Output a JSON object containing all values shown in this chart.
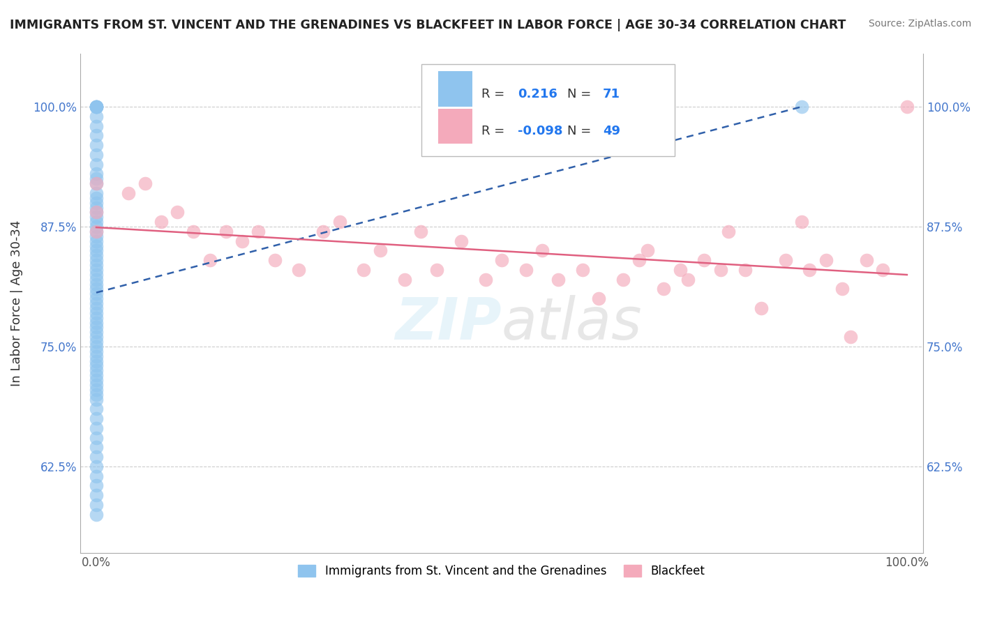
{
  "title": "IMMIGRANTS FROM ST. VINCENT AND THE GRENADINES VS BLACKFEET IN LABOR FORCE | AGE 30-34 CORRELATION CHART",
  "source": "Source: ZipAtlas.com",
  "ylabel": "In Labor Force | Age 30-34",
  "xlim": [
    -0.02,
    1.02
  ],
  "ylim": [
    0.535,
    1.055
  ],
  "yticks": [
    0.625,
    0.75,
    0.875,
    1.0
  ],
  "ytick_labels": [
    "62.5%",
    "75.0%",
    "87.5%",
    "100.0%"
  ],
  "xticks": [
    0.0,
    1.0
  ],
  "xtick_labels": [
    "0.0%",
    "100.0%"
  ],
  "legend_R1": "0.216",
  "legend_N1": "71",
  "legend_R2": "-0.098",
  "legend_N2": "49",
  "label1": "Immigrants from St. Vincent and the Grenadines",
  "label2": "Blackfeet",
  "color1": "#8FC4EE",
  "color2": "#F4AABB",
  "trendline_color1": "#3060AA",
  "trendline_color2": "#E06080",
  "gridline_color": "#CCCCCC",
  "background_color": "#FFFFFF",
  "blue_x": [
    0.0,
    0.0,
    0.0,
    0.0,
    0.0,
    0.0,
    0.0,
    0.0,
    0.0,
    0.0,
    0.0,
    0.0,
    0.0,
    0.0,
    0.0,
    0.0,
    0.0,
    0.0,
    0.0,
    0.0,
    0.0,
    0.0,
    0.0,
    0.0,
    0.0,
    0.0,
    0.0,
    0.0,
    0.0,
    0.0,
    0.0,
    0.0,
    0.0,
    0.0,
    0.0,
    0.0,
    0.0,
    0.0,
    0.0,
    0.0,
    0.0,
    0.0,
    0.0,
    0.0,
    0.0,
    0.0,
    0.0,
    0.0,
    0.0,
    0.0,
    0.0,
    0.0,
    0.0,
    0.0,
    0.0,
    0.0,
    0.0,
    0.0,
    0.0,
    0.0,
    0.0,
    0.0,
    0.0,
    0.0,
    0.0,
    0.0,
    0.0,
    0.0,
    0.0,
    0.0,
    0.87
  ],
  "blue_y": [
    1.0,
    1.0,
    1.0,
    1.0,
    1.0,
    0.99,
    0.98,
    0.97,
    0.96,
    0.95,
    0.94,
    0.93,
    0.925,
    0.92,
    0.91,
    0.905,
    0.9,
    0.895,
    0.89,
    0.885,
    0.88,
    0.875,
    0.87,
    0.865,
    0.86,
    0.855,
    0.85,
    0.845,
    0.84,
    0.835,
    0.83,
    0.825,
    0.82,
    0.815,
    0.81,
    0.805,
    0.8,
    0.795,
    0.79,
    0.785,
    0.78,
    0.775,
    0.77,
    0.765,
    0.76,
    0.755,
    0.75,
    0.745,
    0.74,
    0.735,
    0.73,
    0.725,
    0.72,
    0.715,
    0.71,
    0.705,
    0.7,
    0.695,
    0.685,
    0.675,
    0.665,
    0.655,
    0.645,
    0.635,
    0.625,
    0.615,
    0.605,
    0.595,
    0.585,
    0.575,
    1.0
  ],
  "pink_x": [
    0.0,
    0.0,
    0.0,
    0.04,
    0.06,
    0.08,
    0.1,
    0.12,
    0.14,
    0.16,
    0.18,
    0.2,
    0.22,
    0.25,
    0.28,
    0.3,
    0.33,
    0.35,
    0.38,
    0.4,
    0.42,
    0.45,
    0.48,
    0.5,
    0.53,
    0.55,
    0.57,
    0.6,
    0.62,
    0.65,
    0.67,
    0.68,
    0.7,
    0.72,
    0.73,
    0.75,
    0.77,
    0.78,
    0.8,
    0.82,
    0.85,
    0.87,
    0.88,
    0.9,
    0.92,
    0.93,
    0.95,
    0.97,
    1.0
  ],
  "pink_y": [
    0.92,
    0.89,
    0.87,
    0.91,
    0.92,
    0.88,
    0.89,
    0.87,
    0.84,
    0.87,
    0.86,
    0.87,
    0.84,
    0.83,
    0.87,
    0.88,
    0.83,
    0.85,
    0.82,
    0.87,
    0.83,
    0.86,
    0.82,
    0.84,
    0.83,
    0.85,
    0.82,
    0.83,
    0.8,
    0.82,
    0.84,
    0.85,
    0.81,
    0.83,
    0.82,
    0.84,
    0.83,
    0.87,
    0.83,
    0.79,
    0.84,
    0.88,
    0.83,
    0.84,
    0.81,
    0.76,
    0.84,
    0.83,
    1.0
  ]
}
